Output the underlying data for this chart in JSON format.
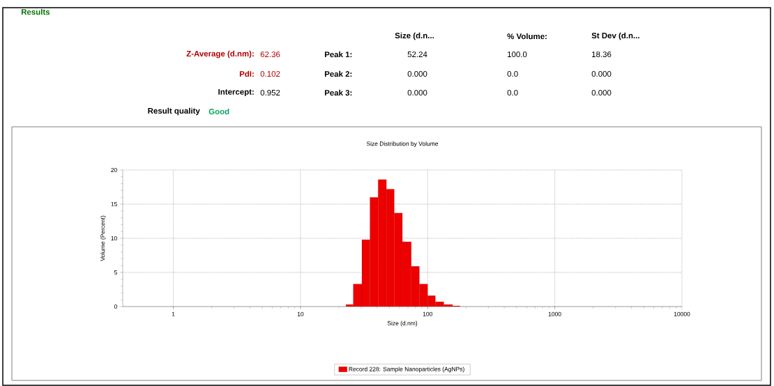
{
  "chart_data": {
    "type": "histogram",
    "title": "Size Distribution by Volume",
    "xlabel": "Size (d.nm)",
    "ylabel": "Volume (Percent)",
    "bins": [
      22.8,
      26.0,
      30.4,
      35.2,
      40.8,
      47.4,
      54.6,
      63.3,
      74.3,
      86.1,
      100,
      115,
      134,
      157,
      180
    ],
    "series": [
      {
        "name": "Record 228: Sample Nanoparticles (AgNPs)",
        "color": "#ee0000",
        "values": [
          0.3,
          3.3,
          9.8,
          16.0,
          18.6,
          17.2,
          13.7,
          9.5,
          5.9,
          3.3,
          1.6,
          0.7,
          0.3,
          0.1
        ]
      }
    ],
    "log": "x",
    "xlim": [
      0.4,
      10000
    ],
    "ylim": [
      0,
      20
    ],
    "xticks": [
      1,
      10,
      100,
      1000,
      10000
    ],
    "yticks": [
      0,
      5,
      10,
      15,
      20
    ],
    "grid": true,
    "legend": "bottom",
    "annotations": [
      "Results",
      "Size (d.n...",
      "% Volume:",
      "St Dev (d.n...",
      "Z-Average (d.nm):",
      "62.36",
      "Peak 1:",
      "52.24",
      "100.0",
      "18.36",
      "PdI:",
      "0.102",
      "Peak 2:",
      "0.000",
      "0.0",
      "0.000",
      "Intercept:",
      "0.952",
      "Peak 3:",
      "0.000",
      "0.0",
      "0.000",
      "Result quality",
      "Good"
    ]
  }
}
